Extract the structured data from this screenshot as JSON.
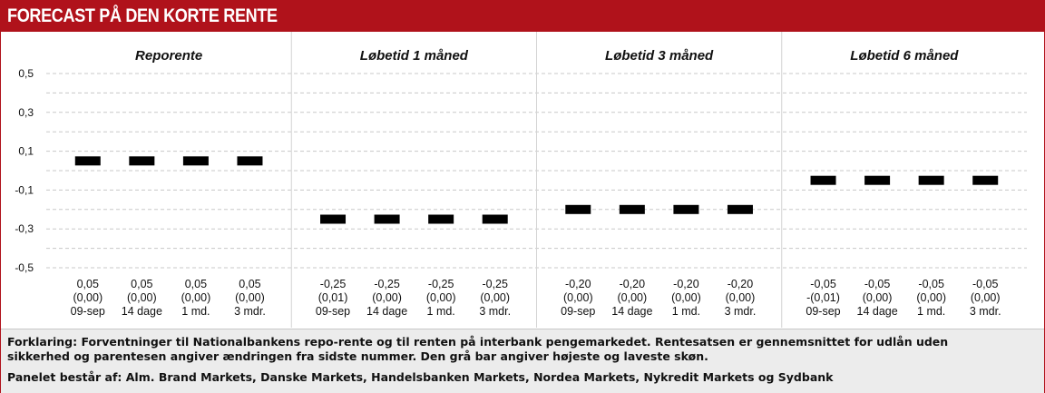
{
  "header": {
    "title": "FORECAST PÅ DEN KORTE RENTE"
  },
  "chart_data": {
    "type": "scatter",
    "ylim": [
      -0.5,
      0.5
    ],
    "yticks": [
      "0,5",
      "0,3",
      "0,1",
      "-0,1",
      "-0,3",
      "-0,5"
    ],
    "ytick_values": [
      0.5,
      0.3,
      0.1,
      -0.1,
      -0.3,
      -0.5
    ],
    "grid": true,
    "panels": [
      {
        "title": "Reporente",
        "points": [
          {
            "value": 0.05,
            "value_label": "0,05",
            "change_label": "(0,00)",
            "category": "09-sep"
          },
          {
            "value": 0.05,
            "value_label": "0,05",
            "change_label": "(0,00)",
            "category": "14 dage"
          },
          {
            "value": 0.05,
            "value_label": "0,05",
            "change_label": "(0,00)",
            "category": "1 md."
          },
          {
            "value": 0.05,
            "value_label": "0,05",
            "change_label": "(0,00)",
            "category": "3 mdr."
          }
        ]
      },
      {
        "title": "Løbetid 1 måned",
        "points": [
          {
            "value": -0.25,
            "value_label": "-0,25",
            "change_label": "(0,01)",
            "category": "09-sep"
          },
          {
            "value": -0.25,
            "value_label": "-0,25",
            "change_label": "(0,00)",
            "category": "14 dage"
          },
          {
            "value": -0.25,
            "value_label": "-0,25",
            "change_label": "(0,00)",
            "category": "1 md."
          },
          {
            "value": -0.25,
            "value_label": "-0,25",
            "change_label": "(0,00)",
            "category": "3 mdr."
          }
        ]
      },
      {
        "title": "Løbetid 3 måned",
        "points": [
          {
            "value": -0.2,
            "value_label": "-0,20",
            "change_label": "(0,00)",
            "category": "09-sep"
          },
          {
            "value": -0.2,
            "value_label": "-0,20",
            "change_label": "(0,00)",
            "category": "14 dage"
          },
          {
            "value": -0.2,
            "value_label": "-0,20",
            "change_label": "(0,00)",
            "category": "1 md."
          },
          {
            "value": -0.2,
            "value_label": "-0,20",
            "change_label": "(0,00)",
            "category": "3 mdr."
          }
        ]
      },
      {
        "title": "Løbetid 6 måned",
        "points": [
          {
            "value": -0.05,
            "value_label": "-0,05",
            "change_label": "-(0,01)",
            "category": "09-sep"
          },
          {
            "value": -0.05,
            "value_label": "-0,05",
            "change_label": "(0,00)",
            "category": "14 dage"
          },
          {
            "value": -0.05,
            "value_label": "-0,05",
            "change_label": "(0,00)",
            "category": "1 md."
          },
          {
            "value": -0.05,
            "value_label": "-0,05",
            "change_label": "(0,00)",
            "category": "3 mdr."
          }
        ]
      }
    ]
  },
  "footer": {
    "note": "Forklaring: Forventninger til Nationalbankens repo-rente og til renten på interbank pengemarkedet. Rentesatsen er gennemsnittet for udlån uden sikkerhed og parentesen angiver ændringen fra sidste nummer. Den grå bar angiver højeste og laveste skøn.",
    "panel": "Panelet består af: Alm. Brand Markets, Danske Markets, Handelsbanken Markets, Nordea Markets, Nykredit Markets og Sydbank"
  },
  "colors": {
    "header_bg": "#b0121b",
    "marker": "#000000",
    "grid": "#c8c8c8",
    "footer_bg": "#ececec"
  }
}
